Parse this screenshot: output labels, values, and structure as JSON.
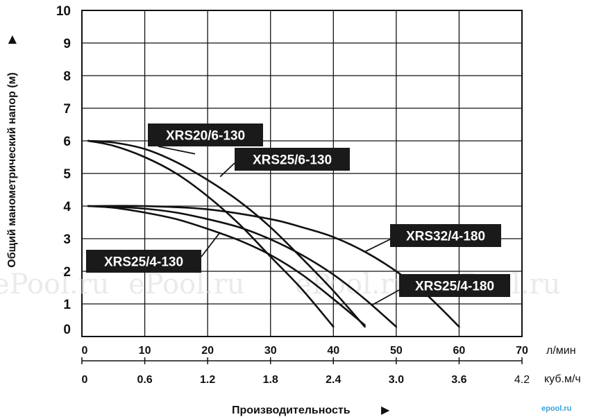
{
  "chart_data": {
    "type": "line",
    "ylabel": "Общий манометрический напор (м)",
    "xlabel": "Производительность",
    "x_unit_primary": "л/мин",
    "x_unit_secondary": "куб.м/ч",
    "xlim": [
      0,
      70
    ],
    "ylim": [
      0,
      10
    ],
    "y_ticks": [
      "0",
      "1",
      "2",
      "3",
      "4",
      "5",
      "6",
      "7",
      "8",
      "9",
      "10"
    ],
    "x_ticks_primary": [
      "0",
      "10",
      "20",
      "30",
      "40",
      "50",
      "60",
      "70"
    ],
    "x_ticks_secondary": [
      "0",
      "0.6",
      "1.2",
      "1.8",
      "2.4",
      "3.0",
      "3.6",
      "4.2"
    ],
    "grid": true,
    "series": [
      {
        "name": "XRS20/6-130",
        "x": [
          1,
          5,
          10,
          15,
          20,
          25,
          30,
          35,
          40
        ],
        "y": [
          6.0,
          5.85,
          5.5,
          5.0,
          4.3,
          3.45,
          2.45,
          1.45,
          0.3
        ]
      },
      {
        "name": "XRS25/6-130",
        "x": [
          1,
          5,
          10,
          15,
          20,
          25,
          30,
          35,
          40,
          45
        ],
        "y": [
          6.0,
          5.95,
          5.75,
          5.35,
          4.8,
          4.15,
          3.35,
          2.4,
          1.4,
          0.3
        ]
      },
      {
        "name": "XRS25/4-130",
        "x": [
          1,
          5,
          10,
          15,
          20,
          25,
          30,
          35,
          40,
          45
        ],
        "y": [
          4.0,
          3.95,
          3.8,
          3.6,
          3.3,
          2.95,
          2.5,
          1.9,
          1.15,
          0.35
        ]
      },
      {
        "name": "XRS25/4-180",
        "x": [
          1,
          5,
          10,
          15,
          20,
          25,
          30,
          35,
          40,
          45,
          50
        ],
        "y": [
          4.0,
          3.98,
          3.92,
          3.8,
          3.6,
          3.35,
          2.98,
          2.5,
          1.9,
          1.15,
          0.3
        ]
      },
      {
        "name": "XRS32/4-180",
        "x": [
          1,
          10,
          20,
          30,
          35,
          40,
          45,
          50,
          55,
          60
        ],
        "y": [
          4.0,
          4.0,
          3.9,
          3.6,
          3.35,
          3.05,
          2.6,
          2.0,
          1.25,
          0.3
        ]
      }
    ],
    "labels": [
      {
        "series": "XRS20/6-130",
        "text": "XRS20/6-130"
      },
      {
        "series": "XRS25/6-130",
        "text": "XRS25/6-130"
      },
      {
        "series": "XRS25/4-130",
        "text": "XRS25/4-130"
      },
      {
        "series": "XRS32/4-180",
        "text": "XRS32/4-180"
      },
      {
        "series": "XRS25/4-180",
        "text": "XRS25/4-180"
      }
    ]
  },
  "watermark": "ePool.ru",
  "brand": "epool.ru",
  "colors": {
    "line": "#111111",
    "grid": "#111111",
    "label_bg": "#1a1a1a",
    "label_text": "#ffffff"
  }
}
